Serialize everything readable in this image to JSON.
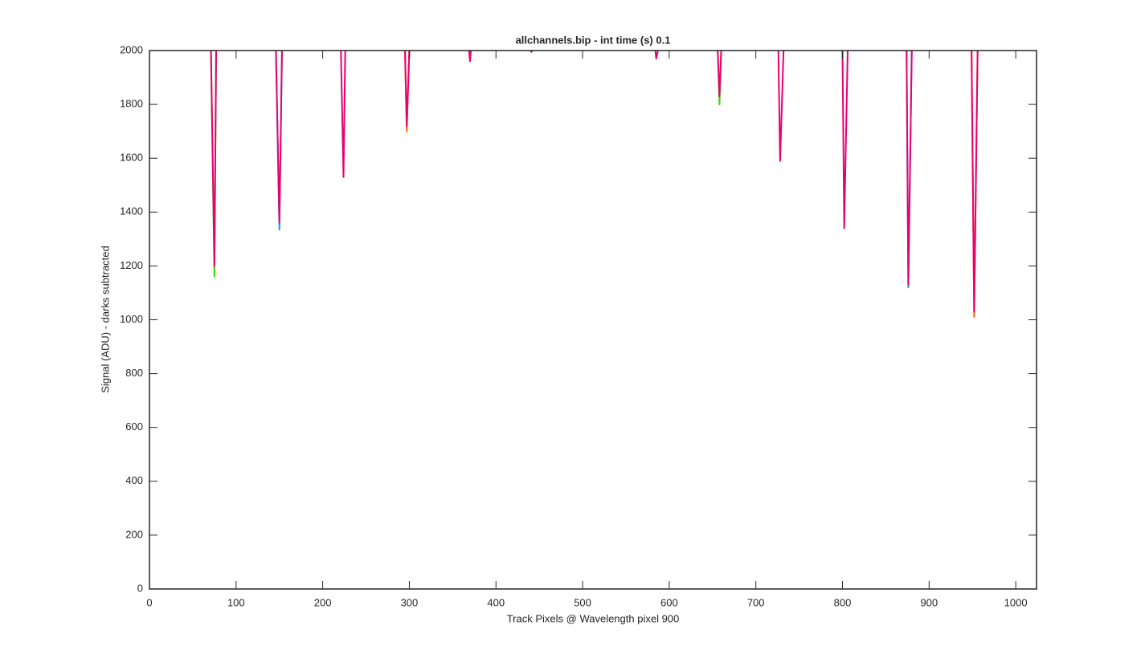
{
  "chart_data": {
    "type": "line",
    "title": "allchannels.bip - int time (s) 0.1",
    "xlabel": "Track Pixels @ Wavelength pixel 900",
    "ylabel": "Signal (ADU) - darks subtracted",
    "xlim": [
      0,
      1024
    ],
    "xticks": [
      0,
      100,
      200,
      300,
      400,
      500,
      600,
      700,
      800,
      900,
      1000
    ],
    "ylim": [
      0,
      2000
    ],
    "yticks": [
      0,
      200,
      400,
      600,
      800,
      1000,
      1200,
      1400,
      1600,
      1800,
      2000
    ],
    "grid": false,
    "series": [
      {
        "color": "#33dd00",
        "x": [
          71,
          75,
          77,
          110,
          656,
          658,
          660
        ],
        "values": [
          2000,
          1160,
          2000,
          null,
          2000,
          1800,
          2000
        ]
      },
      {
        "color": "#1e90ff",
        "x": [
          146,
          150,
          153,
          500,
          874,
          876,
          880
        ],
        "values": [
          2000,
          1335,
          2000,
          null,
          2000,
          1120,
          2000
        ]
      },
      {
        "color": "#ff6600",
        "x": [
          295,
          297,
          300,
          600,
          949,
          952,
          956
        ],
        "values": [
          2000,
          1700,
          2000,
          null,
          2000,
          1010,
          2000
        ]
      },
      {
        "color": "#e8006f",
        "x": [
          71,
          75,
          77,
          110,
          146,
          150,
          153,
          190,
          221,
          224,
          226,
          260,
          295,
          297,
          300,
          335,
          369,
          370,
          371,
          405,
          440,
          441,
          442,
          510,
          584,
          585,
          587,
          620,
          656,
          658,
          660,
          690,
          726,
          728,
          732,
          765,
          800,
          802,
          806,
          840,
          874,
          876,
          880,
          915,
          949,
          952,
          956
        ],
        "values": [
          2000,
          1200,
          2000,
          null,
          2000,
          1360,
          2000,
          null,
          2000,
          1530,
          2000,
          null,
          2000,
          1720,
          2000,
          null,
          2000,
          1960,
          2000,
          null,
          2000,
          1995,
          2000,
          null,
          2000,
          1970,
          2000,
          null,
          2000,
          1830,
          2000,
          null,
          2000,
          1590,
          2000,
          null,
          2000,
          1340,
          2000,
          null,
          2000,
          1130,
          2000,
          null,
          2000,
          1030,
          2000
        ]
      }
    ]
  }
}
